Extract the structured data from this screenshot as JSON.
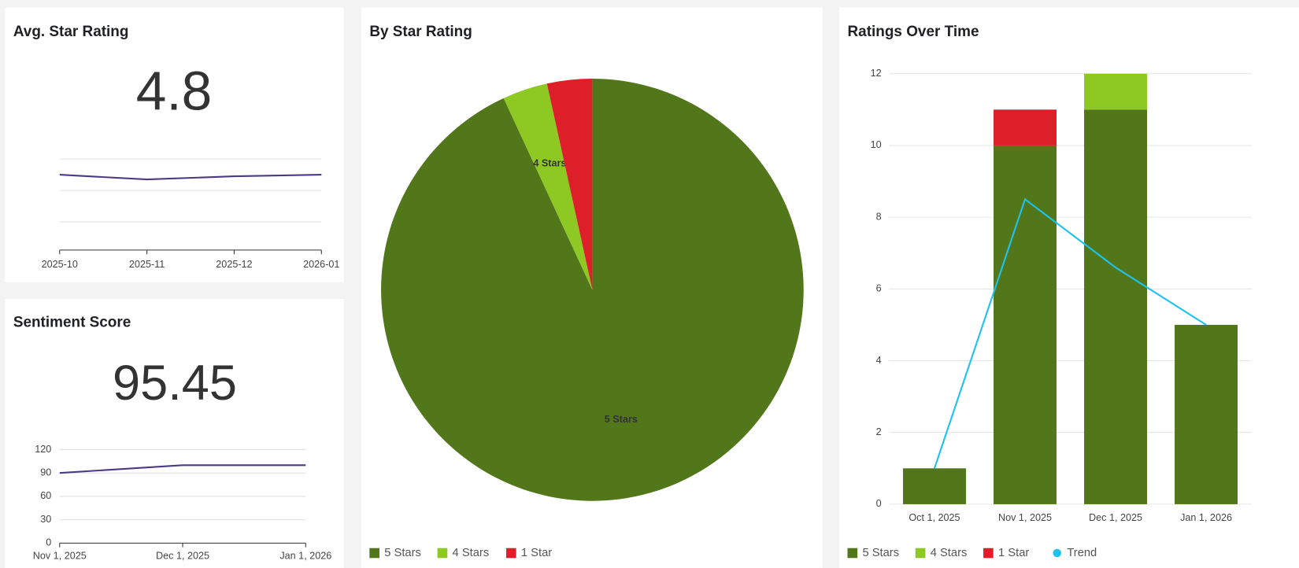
{
  "chart_data": [
    {
      "type": "line",
      "title": "Avg. Star Rating",
      "value": 4.8,
      "categories": [
        "2025-10",
        "2025-11",
        "2025-12",
        "2026-01"
      ],
      "values": [
        4.9,
        4.87,
        4.89,
        4.9
      ],
      "color": "#4b3a85",
      "ylim": [
        4.4,
        5.0
      ],
      "yticks": [
        4.6,
        4.8,
        5.0
      ],
      "ytick_labels": false,
      "grid": true
    },
    {
      "type": "line",
      "title": "Sentiment Score",
      "value": 95.45,
      "categories": [
        "Nov 1, 2025",
        "Dec 1, 2025",
        "Jan 1, 2026"
      ],
      "values": [
        90,
        100,
        100
      ],
      "color": "#4b3a85",
      "ylim": [
        0,
        120
      ],
      "yticks": [
        0,
        30,
        60,
        90,
        120
      ],
      "ytick_labels": true,
      "grid": true
    },
    {
      "type": "pie",
      "title": "By Star Rating",
      "categories": [
        "5 Stars",
        "4 Stars",
        "1 Star"
      ],
      "values": [
        27,
        1,
        1
      ],
      "colors": [
        "#51771a",
        "#8dc823",
        "#dd1f2a"
      ],
      "slice_labels": [
        true,
        true,
        false
      ]
    },
    {
      "type": "stacked_bar_line",
      "title": "Ratings Over Time",
      "categories": [
        "Oct 1, 2025",
        "Nov 1, 2025",
        "Dec 1, 2025",
        "Jan 1, 2026"
      ],
      "series": [
        {
          "name": "5 Stars",
          "color": "#51771a",
          "values": [
            1,
            10,
            11,
            5
          ]
        },
        {
          "name": "4 Stars",
          "color": "#8dc823",
          "values": [
            0,
            0,
            1,
            0
          ]
        },
        {
          "name": "1 Star",
          "color": "#dd1f2a",
          "values": [
            0,
            1,
            0,
            0
          ]
        },
        {
          "name": "Trend",
          "color": "#1fc2ee",
          "type": "line",
          "values": [
            1,
            8.5,
            6.6,
            5
          ]
        }
      ],
      "ylim": [
        0,
        12
      ],
      "yticks": [
        0,
        2,
        4,
        6,
        8,
        10,
        12
      ],
      "grid": true
    }
  ]
}
